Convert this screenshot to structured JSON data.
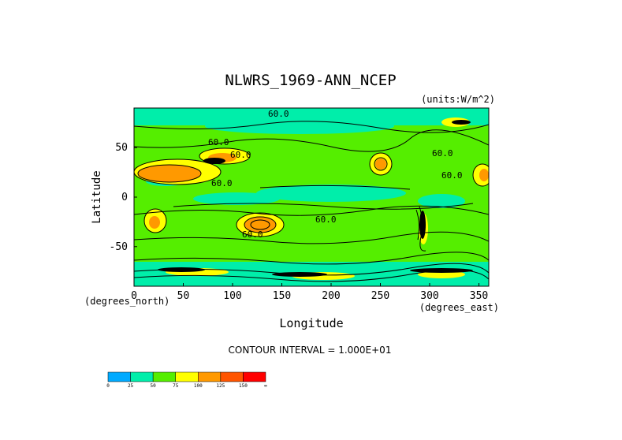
{
  "chart_data": {
    "type": "heatmap",
    "title": "NLWRS_1969-ANN_NCEP",
    "units": "(units:W/m^2)",
    "xlabel": "Longitude",
    "ylabel": "Latitude",
    "x_unit_label": "(degrees_east)",
    "y_unit_label": "(degrees_north)",
    "xlim": [
      0,
      360
    ],
    "ylim": [
      -90,
      90
    ],
    "x_ticks": [
      "0",
      "50",
      "100",
      "150",
      "200",
      "250",
      "300",
      "350"
    ],
    "y_ticks": [
      "50",
      "0",
      "-50"
    ],
    "contour_interval_text": "CONTOUR INTERVAL = 1.000E+01",
    "contour_labels": [
      "60.0",
      "60.0",
      "60.0",
      "60.0",
      "60.0",
      "60.0",
      "60.0",
      "60.0"
    ],
    "colorbar": {
      "ticks": [
        "0",
        "25",
        "50",
        "75",
        "100",
        "125",
        "150",
        "∞"
      ],
      "colors": [
        "#00aaff",
        "#00eeaa",
        "#55ee00",
        "#ffff00",
        "#ff9900",
        "#ff5500",
        "#ff0000"
      ]
    },
    "grid": false
  }
}
